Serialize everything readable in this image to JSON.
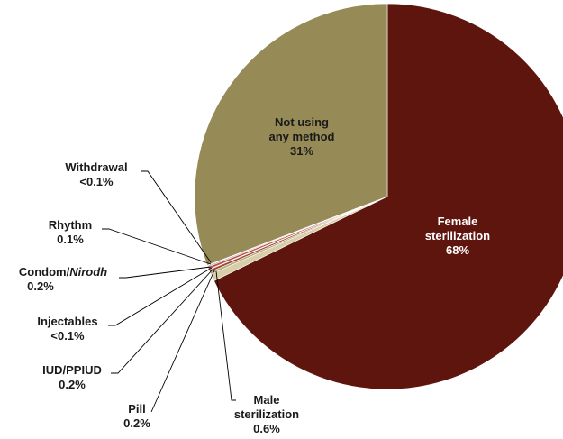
{
  "chart_data": {
    "type": "pie",
    "title": "",
    "start_angle_deg": 0,
    "direction": "clockwise",
    "colors": {
      "female_sterilization": "#5e150d",
      "male_sterilization": "#d8cfaa",
      "pill": "#b7a983",
      "iud": "#9a4a2c",
      "injectables": "#6e6e6e",
      "condom": "#c0504d",
      "rhythm": "#a3a3a3",
      "withdrawal": "#7f6f4a",
      "not_using": "#968a57"
    },
    "slices": [
      {
        "key": "female_sterilization",
        "label_lines": [
          "Female",
          "sterilization",
          "68%"
        ],
        "value": 67.8,
        "label_pos": "inside"
      },
      {
        "key": "male_sterilization",
        "label_lines": [
          "Male",
          "sterilization",
          "0.6%"
        ],
        "value": 0.6,
        "label_pos": "outside"
      },
      {
        "key": "pill",
        "label_lines": [
          "Pill",
          "0.2%"
        ],
        "value": 0.2,
        "label_pos": "outside"
      },
      {
        "key": "iud",
        "label_lines": [
          "IUD/PPIUD",
          "0.2%"
        ],
        "value": 0.2,
        "label_pos": "outside"
      },
      {
        "key": "injectables",
        "label_lines": [
          "Injectables",
          "<0.1%"
        ],
        "value": 0.05,
        "label_pos": "outside"
      },
      {
        "key": "condom",
        "label_lines": [
          "Condom/",
          "Nirodh",
          "0.2%"
        ],
        "value": 0.2,
        "label_pos": "outside",
        "italic_part": "Nirodh"
      },
      {
        "key": "rhythm",
        "label_lines": [
          "Rhythm",
          "0.1%"
        ],
        "value": 0.1,
        "label_pos": "outside"
      },
      {
        "key": "withdrawal",
        "label_lines": [
          "Withdrawal",
          "<0.1%"
        ],
        "value": 0.05,
        "label_pos": "outside"
      },
      {
        "key": "not_using",
        "label_lines": [
          "Not using",
          "any method",
          "31%"
        ],
        "value": 30.8,
        "label_pos": "inside"
      }
    ]
  }
}
